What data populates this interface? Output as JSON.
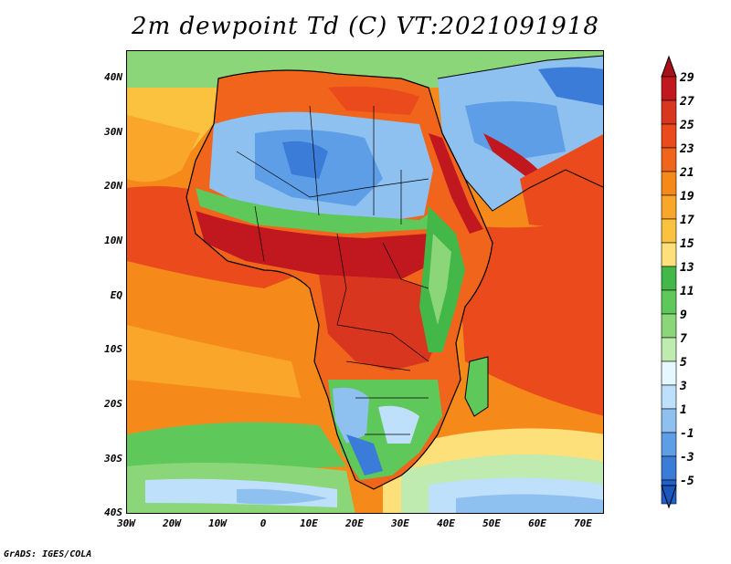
{
  "title": "2m dewpoint Td (C) VT:2021091918",
  "credit": "GrADS: IGES/COLA",
  "map": {
    "lat_labels": [
      "40N",
      "30N",
      "20N",
      "10N",
      "EQ",
      "10S",
      "20S",
      "30S",
      "40S"
    ],
    "lon_labels": [
      "30W",
      "20W",
      "10W",
      "0",
      "10E",
      "20E",
      "30E",
      "40E",
      "50E",
      "60E",
      "70E"
    ],
    "extent": {
      "lon_min": -30,
      "lon_max": 75,
      "lat_min": -40,
      "lat_max": 45
    }
  },
  "colorbar": {
    "labels": [
      "29",
      "27",
      "25",
      "23",
      "21",
      "19",
      "17",
      "15",
      "13",
      "11",
      "9",
      "7",
      "5",
      "3",
      "1",
      "-1",
      "-3",
      "-5"
    ],
    "colors": [
      "#c0181e",
      "#d8361f",
      "#ea4a1c",
      "#f0641c",
      "#f58a1a",
      "#f9a62a",
      "#fbc240",
      "#fde07a",
      "#43b849",
      "#5fc85a",
      "#8cd67a",
      "#bfeab0",
      "#e6f8ff",
      "#bfe0fb",
      "#8ec0f0",
      "#5e9ee6",
      "#3a7cd8",
      "#2060c8"
    ],
    "top_color": "#a8101a",
    "bottom_color": "#1a56c0"
  }
}
